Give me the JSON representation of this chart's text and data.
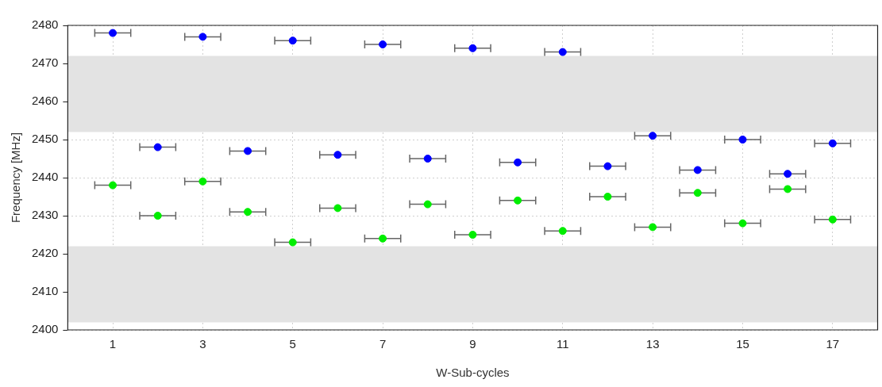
{
  "chart_data": {
    "type": "scatter",
    "xlabel": "W-Sub-cycles",
    "ylabel": "Frequency [MHz]",
    "xlim": [
      0,
      18
    ],
    "xticks": [
      1,
      3,
      5,
      7,
      9,
      11,
      13,
      15,
      17
    ],
    "ylim": [
      2400,
      2480
    ],
    "yticks": [
      2400,
      2410,
      2420,
      2430,
      2440,
      2450,
      2460,
      2470,
      2480
    ],
    "grid": true,
    "legend": false,
    "marker": "circle",
    "x": [
      1,
      2,
      3,
      4,
      5,
      6,
      7,
      8,
      9,
      10,
      11,
      12,
      13,
      14,
      15,
      16,
      17
    ],
    "series": [
      {
        "color": "#0000ff",
        "values": [
          2478,
          2448,
          2477,
          2447,
          2476,
          2446,
          2475,
          2445,
          2474,
          2444,
          2473,
          2443,
          2451,
          2442,
          2450,
          2441,
          2449
        ],
        "xerrors": [
          0.4,
          0.4,
          0.4,
          0.4,
          0.4,
          0.4,
          0.4,
          0.4,
          0.4,
          0.4,
          0.4,
          0.4,
          0.4,
          0.4,
          0.4,
          0.4,
          0.4
        ]
      },
      {
        "color": "#00ee00",
        "values": [
          2438,
          2430,
          2439,
          2431,
          2423,
          2432,
          2424,
          2433,
          2425,
          2434,
          2426,
          2435,
          2427,
          2436,
          2428,
          2437,
          2429
        ],
        "xerrors": [
          0.4,
          0.4,
          0.4,
          0.4,
          0.4,
          0.4,
          0.4,
          0.4,
          0.4,
          0.4,
          0.4,
          0.4,
          0.4,
          0.4,
          0.4,
          0.4,
          0.4
        ]
      }
    ],
    "bands": [
      {
        "axis": "y",
        "from": 2402,
        "to": 2422,
        "color": "#e3e3e3"
      },
      {
        "axis": "y",
        "from": 2452,
        "to": 2472,
        "color": "#e3e3e3"
      }
    ]
  }
}
